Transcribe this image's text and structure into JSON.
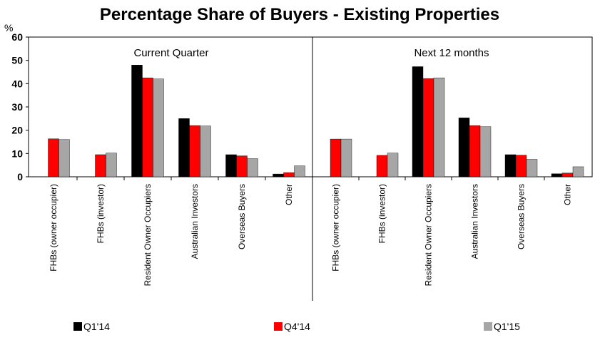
{
  "chart_data": {
    "type": "bar",
    "title": "Percentage Share of Buyers - Existing Properties",
    "ylabel": "%",
    "ylim": [
      0,
      60
    ],
    "yticks": [
      0,
      10,
      20,
      30,
      40,
      50,
      60
    ],
    "grid": false,
    "legend_position": "bottom",
    "categories": [
      "FHBs (owner occupier)",
      "FHBs (investor)",
      "Resident Owner Occupiers",
      "Australian Investors",
      "Overseas Buyers",
      "Other"
    ],
    "panels": [
      {
        "label": "Current Quarter",
        "series": [
          {
            "name": "Q1'14",
            "values": [
              0,
              0,
              48,
              25,
              9.5,
              1.2
            ]
          },
          {
            "name": "Q4'14",
            "values": [
              16.3,
              9.5,
              42.5,
              22,
              9,
              1.8
            ]
          },
          {
            "name": "Q1'15",
            "values": [
              16,
              10.2,
              42,
              21.8,
              7.8,
              4.7
            ]
          }
        ]
      },
      {
        "label": "Next 12 months",
        "series": [
          {
            "name": "Q1'14",
            "values": [
              0,
              0,
              47.3,
              25.3,
              9.5,
              1.3
            ]
          },
          {
            "name": "Q4'14",
            "values": [
              16.2,
              9.2,
              42.2,
              22,
              9.3,
              1.6
            ]
          },
          {
            "name": "Q1'15",
            "values": [
              16.2,
              10.2,
              42.5,
              21.5,
              7.5,
              4.3
            ]
          }
        ]
      }
    ],
    "colors": {
      "Q1'14": "#000000",
      "Q4'14": "#ff0000",
      "Q1'15": "#a6a6a6"
    }
  }
}
